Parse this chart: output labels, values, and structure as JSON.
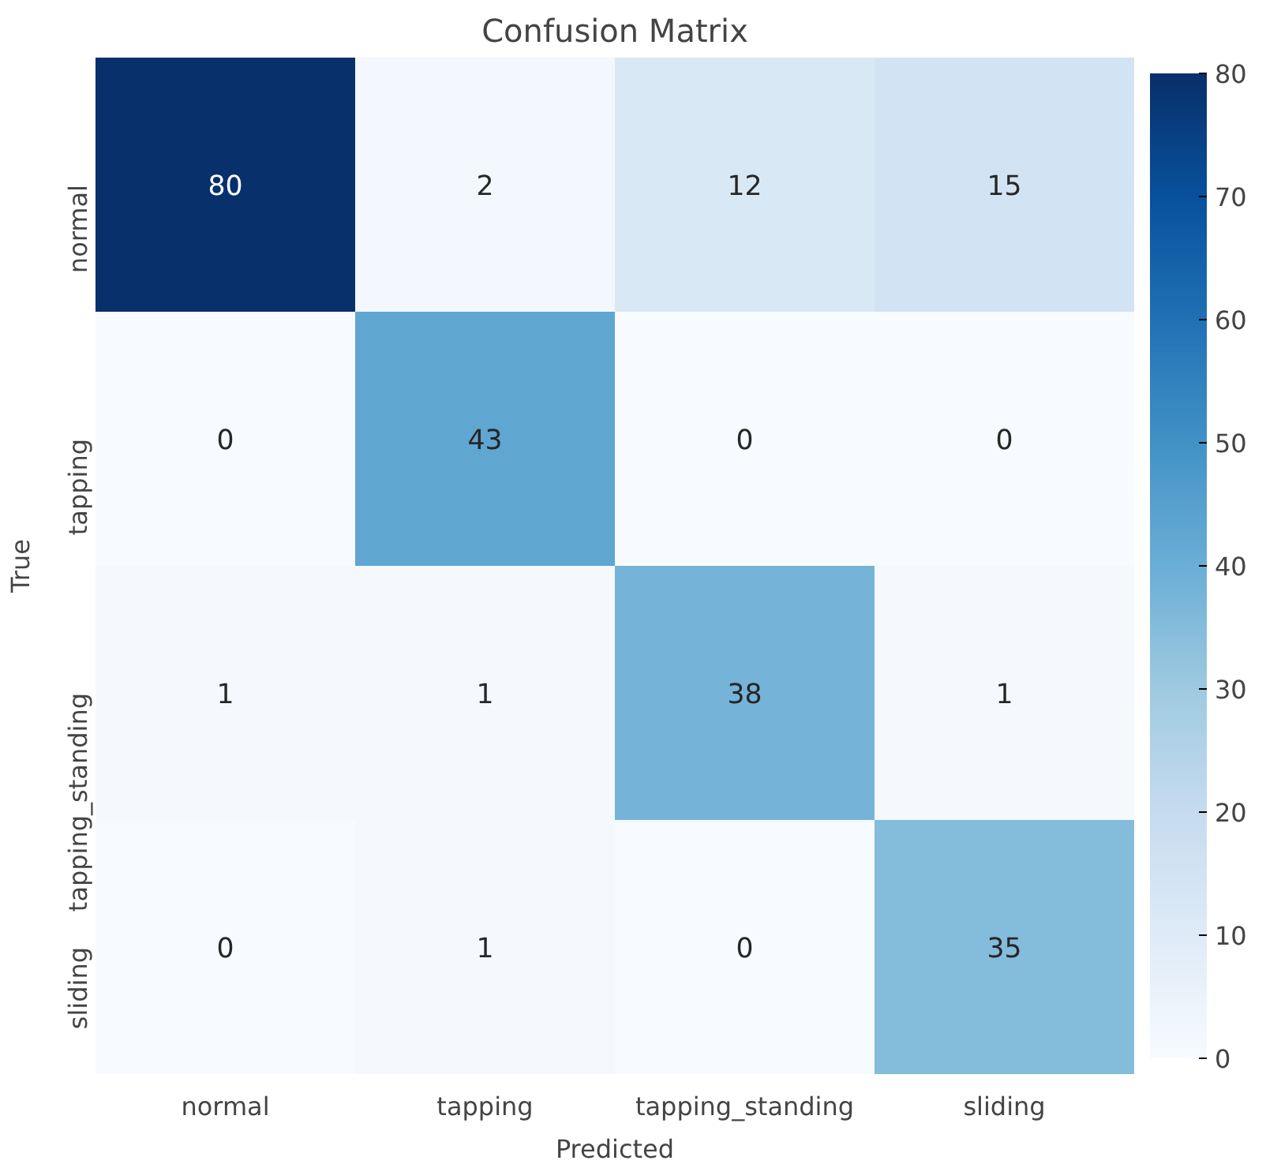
{
  "chart_data": {
    "type": "heatmap",
    "title": "Confusion Matrix",
    "xlabel": "Predicted",
    "ylabel": "True",
    "categories": [
      "normal",
      "tapping",
      "tapping_standing",
      "sliding"
    ],
    "y_categories": [
      "normal",
      "tapping",
      "tapping_standing",
      "sliding"
    ],
    "cells": [
      [
        80,
        2,
        12,
        15
      ],
      [
        0,
        43,
        0,
        0
      ],
      [
        1,
        1,
        38,
        1
      ],
      [
        0,
        1,
        0,
        35
      ]
    ],
    "data_labels": true,
    "clim": [
      0,
      80
    ],
    "cticks": [
      0,
      10,
      20,
      30,
      40,
      50,
      60,
      70,
      80
    ]
  }
}
